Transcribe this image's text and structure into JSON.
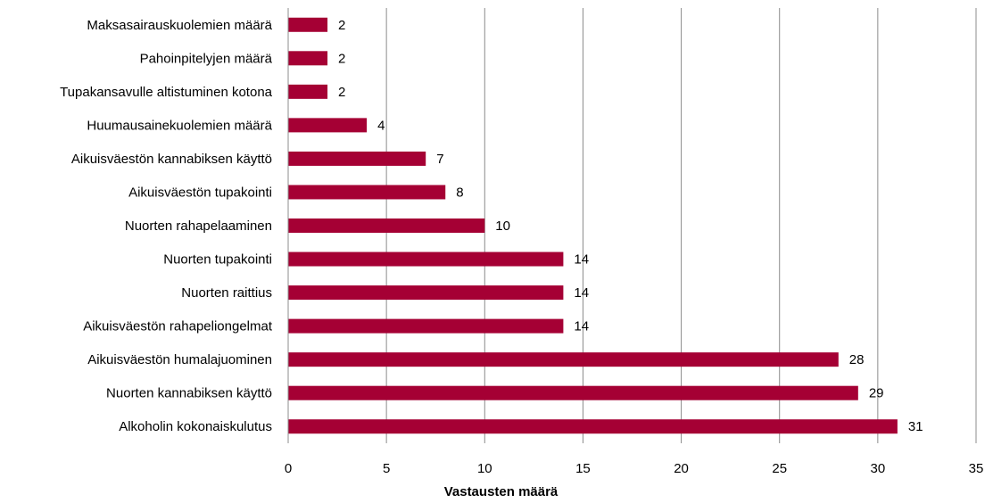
{
  "chart_data": {
    "type": "bar",
    "orientation": "horizontal",
    "categories": [
      "Maksasairauskuolemien määrä",
      "Pahoinpitelyjen määrä",
      "Tupakansavulle altistuminen kotona",
      "Huumausainekuolemien määrä",
      "Aikuisväestön kannabiksen käyttö",
      "Aikuisväestön tupakointi",
      "Nuorten rahapelaaminen",
      "Nuorten tupakointi",
      "Nuorten raittius",
      "Aikuisväestön rahapeliongelmat",
      "Aikuisväestön humalajuominen",
      "Nuorten kannabiksen käyttö",
      "Alkoholin kokonaiskulutus"
    ],
    "values": [
      2,
      2,
      2,
      4,
      7,
      8,
      10,
      14,
      14,
      14,
      28,
      29,
      31
    ],
    "data_labels": [
      "2",
      "2",
      "2",
      "4",
      "7",
      "8",
      "10",
      "14",
      "14",
      "14",
      "28",
      "29",
      "31"
    ],
    "xlabel": "Vastausten määrä",
    "ylabel": "",
    "xlim": [
      0,
      35
    ],
    "xticks": [
      0,
      5,
      10,
      15,
      20,
      25,
      30,
      35
    ],
    "xtick_labels": [
      "0",
      "5",
      "10",
      "15",
      "20",
      "25",
      "30",
      "35"
    ],
    "grid": "vertical",
    "legend": "none",
    "bar_color": "#a50034"
  }
}
